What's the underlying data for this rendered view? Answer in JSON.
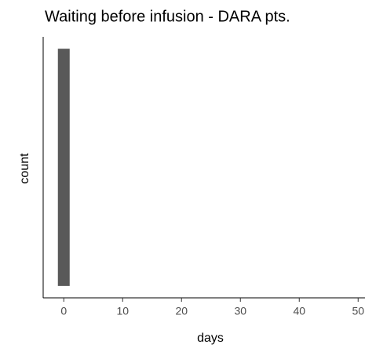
{
  "chart_data": {
    "type": "histogram",
    "title": "Waiting before infusion - DARA pts.",
    "x_label": "days",
    "y_label": "count",
    "bins": [
      -1,
      1
    ],
    "values": [
      1
    ],
    "color": "#595959",
    "xlim": [
      -3.5,
      52.5
    ],
    "xticks": [
      0,
      10,
      20,
      30,
      40,
      50
    ],
    "ylim": [
      -0.05,
      1.05
    ],
    "grid": false
  }
}
